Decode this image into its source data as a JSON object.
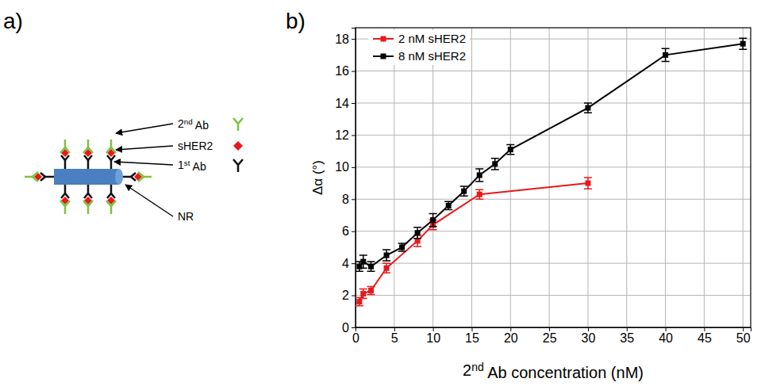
{
  "panel_labels": [
    "a)",
    "b)"
  ],
  "diagram": {
    "labels": [
      "2nd Ab",
      "sHER2",
      "1st Ab",
      "NR"
    ]
  },
  "chart_data": {
    "type": "line",
    "x_label": "2nd Ab concentration (nM)",
    "y_label": "Δα (°)",
    "xlim": [
      0,
      51
    ],
    "xticks": [
      0,
      5,
      10,
      15,
      20,
      25,
      30,
      35,
      40,
      45,
      50
    ],
    "ylim": [
      0,
      18.7
    ],
    "yticks": [
      0,
      2,
      4,
      6,
      8,
      10,
      12,
      14,
      16,
      18
    ],
    "grid": true,
    "legend": "upper left",
    "series": [
      {
        "name": "2 nM sHER2",
        "color": "#e8191c",
        "marker": "square",
        "line_style": "solid",
        "x": [
          0.5,
          1,
          2,
          4,
          8,
          10,
          16,
          30
        ],
        "values": [
          1.6,
          2.1,
          2.3,
          3.7,
          5.4,
          6.4,
          8.3,
          9.0
        ],
        "errors": [
          0.25,
          0.3,
          0.25,
          0.3,
          0.35,
          0.3,
          0.3,
          0.35
        ]
      },
      {
        "name": "8 nM sHER2",
        "color": "#000000",
        "marker": "square",
        "line_style": "solid",
        "x": [
          0.5,
          1,
          2,
          4,
          6,
          8,
          10,
          12,
          14,
          16,
          18,
          20,
          30,
          40,
          50
        ],
        "values": [
          3.8,
          4.1,
          3.8,
          4.5,
          5.0,
          5.9,
          6.7,
          7.6,
          8.5,
          9.5,
          10.2,
          11.1,
          13.7,
          17.0,
          17.7
        ],
        "errors": [
          0.3,
          0.4,
          0.3,
          0.35,
          0.25,
          0.35,
          0.4,
          0.25,
          0.3,
          0.4,
          0.35,
          0.3,
          0.3,
          0.4,
          0.35
        ]
      }
    ]
  }
}
